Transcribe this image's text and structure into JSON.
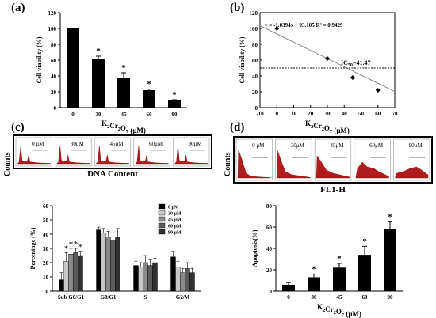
{
  "panels": {
    "a": {
      "label": "(a)"
    },
    "b": {
      "label": "(b)"
    },
    "c": {
      "label": "(c)",
      "caption": "DNA Content",
      "ylabel_small": "Counts"
    },
    "d": {
      "label": "(d)",
      "caption": "FL1-H",
      "ylabel_small": "Counts"
    }
  },
  "flow_c": {
    "labels": [
      "0 μM",
      "30μM",
      "45μM",
      "60μM",
      "90μM"
    ]
  },
  "flow_d": {
    "labels": [
      "0 μM",
      "30μM",
      "45μM",
      "60μM",
      "90μM"
    ]
  },
  "chart_data": [
    {
      "id": "a",
      "type": "bar",
      "categories": [
        "0",
        "30",
        "45",
        "60",
        "90"
      ],
      "values": [
        100,
        62,
        38,
        22,
        9
      ],
      "errors": [
        0,
        3,
        6,
        1.5,
        1
      ],
      "significance": [
        "",
        "*",
        "*",
        "*",
        "*"
      ],
      "xlabel": "K2Cr2O7 (μM)",
      "ylabel": "Cell viability (%)",
      "ylim": [
        0,
        120
      ],
      "yticks": [
        0,
        20,
        40,
        60,
        80,
        100,
        120
      ],
      "color": "#000000"
    },
    {
      "id": "b",
      "type": "scatter",
      "x": [
        0,
        30,
        45,
        60
      ],
      "y": [
        100,
        62,
        38,
        22
      ],
      "fit_equation": "y = -1.0394x + 93.105",
      "r2": "R² = 0.9429",
      "ic50_label": "IC50=41.47",
      "threshold": 50,
      "xlabel": "K2Cr2O7 (μM)",
      "ylabel": "Cell viability (%)",
      "xlim": [
        -10,
        70
      ],
      "ylim": [
        0,
        120
      ],
      "xticks": [
        -10,
        0,
        10,
        20,
        30,
        40,
        50,
        60,
        70
      ],
      "yticks": [
        0,
        20,
        40,
        60,
        80,
        100,
        120
      ]
    },
    {
      "id": "c",
      "type": "bar",
      "categories": [
        "Sub G0/G1",
        "G0/G1",
        "S",
        "G2/M"
      ],
      "series": [
        {
          "name": "0  μM",
          "values": [
            8,
            43,
            18,
            24
          ],
          "errors": [
            5,
            2,
            3,
            4
          ],
          "color": "#000000"
        },
        {
          "name": "30 μM",
          "values": [
            21,
            41,
            17,
            17
          ],
          "errors": [
            6,
            3,
            3,
            4
          ],
          "color": "#c8c8c8"
        },
        {
          "name": "45 μM",
          "values": [
            26,
            38,
            20,
            13
          ],
          "errors": [
            4,
            4,
            5,
            3
          ],
          "color": "#8a8a8a"
        },
        {
          "name": "60 μM",
          "values": [
            27,
            36,
            18,
            16
          ],
          "errors": [
            3,
            5,
            4,
            4
          ],
          "color": "#5a5a5a"
        },
        {
          "name": "90 μM",
          "values": [
            25,
            38,
            20,
            13
          ],
          "errors": [
            3,
            6,
            3,
            3
          ],
          "color": "#303030"
        }
      ],
      "significance": [
        "*",
        "*",
        "*",
        "*"
      ],
      "ylabel": "Percentage (%)",
      "ylim": [
        0,
        60
      ],
      "yticks": [
        0,
        10,
        20,
        30,
        40,
        50,
        60
      ],
      "legend": "top-right"
    },
    {
      "id": "d",
      "type": "bar",
      "categories": [
        "0",
        "30",
        "45",
        "60",
        "90"
      ],
      "values": [
        6,
        13,
        22,
        34,
        58
      ],
      "errors": [
        2,
        3,
        4,
        8,
        7
      ],
      "significance": [
        "",
        "*",
        "*",
        "*",
        "*"
      ],
      "xlabel": "K2Cr2O7 (μM)",
      "ylabel": "Apoptosis(%)",
      "ylim": [
        0,
        80
      ],
      "yticks": [
        0,
        20,
        40,
        60,
        80
      ],
      "color": "#000000"
    }
  ]
}
